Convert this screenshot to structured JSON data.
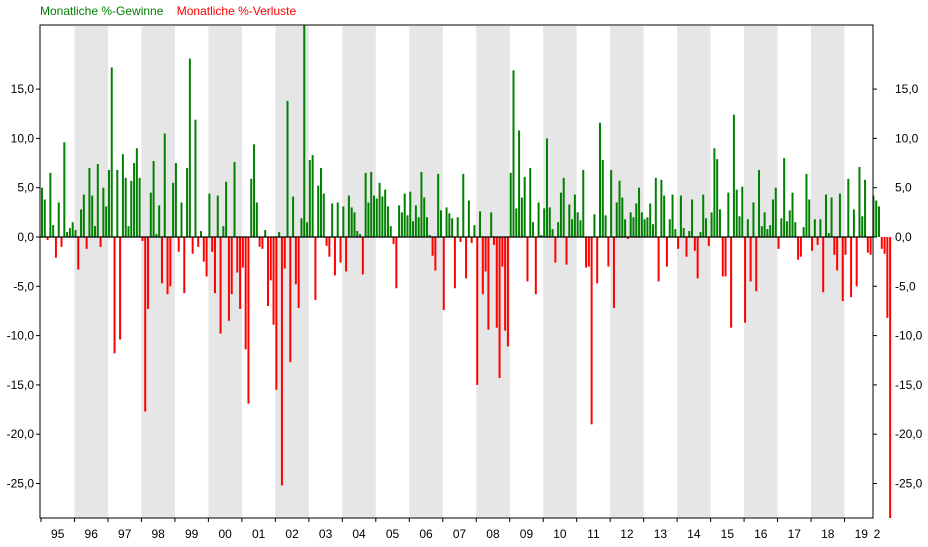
{
  "colors": {
    "gain": "#008000",
    "loss": "#ff0000",
    "band": "#e6e6e6",
    "axis": "#000000",
    "background": "#ffffff"
  },
  "chart_data": {
    "type": "bar",
    "title": "",
    "xlabel": "",
    "ylabel": "",
    "legend_position": "top-left",
    "grid": false,
    "alternating_year_bands": true,
    "series": [
      {
        "name": "Monatliche %-Gewinne",
        "color": "#008000",
        "sign": "positive"
      },
      {
        "name": "Monatliche %-Verluste",
        "color": "#ff0000",
        "sign": "negative"
      }
    ],
    "ylim": [
      -28.5,
      21.5
    ],
    "y_ticks": [
      15,
      10,
      5,
      0,
      -5,
      -10,
      -15,
      -20,
      -25
    ],
    "y_tick_labels": [
      "15,0",
      "10,0",
      "5,0",
      "0,0",
      "-5,0",
      "-10,0",
      "-15,0",
      "-20,0",
      "-25,0"
    ],
    "x_tick_labels": [
      "95",
      "96",
      "97",
      "98",
      "99",
      "00",
      "01",
      "02",
      "03",
      "04",
      "05",
      "06",
      "07",
      "08",
      "09",
      "10",
      "11",
      "12",
      "13",
      "14",
      "15",
      "16",
      "17",
      "18",
      "19",
      "2"
    ],
    "start_year_label": "95",
    "values": [
      5.0,
      3.8,
      -0.3,
      6.5,
      1.2,
      -2.1,
      3.5,
      -1.0,
      9.6,
      0.5,
      0.9,
      1.5,
      0.7,
      -3.3,
      2.8,
      4.3,
      -1.2,
      7.0,
      4.2,
      1.1,
      7.4,
      -1.0,
      5.0,
      3.1,
      6.8,
      17.2,
      -11.8,
      6.8,
      -10.4,
      8.4,
      6.0,
      1.1,
      5.7,
      7.5,
      9.0,
      6.0,
      -0.4,
      -17.7,
      -7.3,
      4.5,
      7.7,
      0.3,
      3.2,
      -4.7,
      10.5,
      -5.8,
      -5.0,
      5.5,
      7.5,
      -1.5,
      3.5,
      -5.7,
      7.0,
      18.1,
      -1.7,
      11.9,
      -1.0,
      0.6,
      -2.5,
      -4.0,
      4.4,
      -1.5,
      -5.7,
      4.2,
      -9.8,
      1.1,
      5.6,
      -8.5,
      -5.8,
      7.6,
      -3.6,
      -7.3,
      -3.1,
      -11.4,
      -16.9,
      5.9,
      9.4,
      3.5,
      -1.0,
      -1.2,
      0.7,
      -7.0,
      -4.4,
      -8.9,
      -15.5,
      0.5,
      -25.2,
      -3.2,
      13.8,
      -12.7,
      4.1,
      -4.8,
      -7.2,
      1.9,
      21.5,
      1.5,
      7.8,
      8.3,
      -6.4,
      5.2,
      7.0,
      4.4,
      -0.9,
      -2.0,
      3.4,
      -3.9,
      3.5,
      -2.6,
      3.1,
      -3.5,
      4.2,
      3.0,
      2.5,
      0.6,
      0.3,
      -3.8,
      6.5,
      3.5,
      6.6,
      4.2,
      3.9,
      5.5,
      4.1,
      4.8,
      3.1,
      1.1,
      -0.7,
      -5.2,
      3.2,
      2.5,
      4.4,
      2.2,
      4.6,
      1.6,
      3.2,
      2.0,
      6.6,
      4.0,
      2.0,
      0.2,
      -1.9,
      -3.4,
      6.4,
      2.7,
      -7.4,
      3.0,
      2.4,
      1.9,
      -5.2,
      2.0,
      -0.5,
      6.4,
      -4.2,
      3.7,
      -0.6,
      1.2,
      -15.0,
      2.6,
      -5.8,
      -3.5,
      -9.4,
      2.5,
      -0.8,
      -9.2,
      -14.3,
      -3.0,
      -9.5,
      -11.1,
      6.5,
      16.9,
      2.9,
      10.8,
      4.0,
      6.1,
      -4.5,
      7.0,
      1.5,
      -5.8,
      3.5,
      0.2,
      2.9,
      10.0,
      3.0,
      0.8,
      -2.6,
      1.5,
      4.5,
      6.0,
      -2.8,
      3.3,
      1.8,
      4.3,
      2.5,
      1.7,
      6.8,
      -3.1,
      -3.0,
      -19.0,
      2.3,
      -4.7,
      11.6,
      7.8,
      2.2,
      -3.0,
      6.8,
      -7.2,
      3.5,
      5.7,
      4.0,
      1.8,
      -0.2,
      2.5,
      2.0,
      3.4,
      5.0,
      2.5,
      1.8,
      2.0,
      3.4,
      1.3,
      6.0,
      -4.5,
      5.8,
      4.2,
      -3.0,
      1.8,
      4.3,
      0.8,
      -1.2,
      4.2,
      0.9,
      -2.0,
      0.6,
      3.8,
      -1.4,
      -4.2,
      0.5,
      4.3,
      1.9,
      -0.9,
      2.5,
      9.0,
      7.9,
      2.8,
      -4.0,
      -4.0,
      4.5,
      -9.2,
      12.4,
      4.8,
      2.1,
      5.1,
      -8.7,
      1.8,
      -4.5,
      3.5,
      -5.5,
      6.8,
      1.1,
      2.5,
      0.8,
      1.2,
      3.8,
      5.0,
      -1.2,
      1.9,
      8.0,
      1.6,
      2.7,
      4.5,
      1.5,
      -2.3,
      -2.0,
      1.0,
      6.4,
      3.8,
      -1.4,
      1.8,
      -0.8,
      1.8,
      -5.6,
      4.3,
      0.4,
      4.0,
      -1.8,
      -3.4,
      4.4,
      -6.5,
      -1.8,
      5.9,
      -6.1,
      2.8,
      -5.0,
      7.1,
      2.1,
      5.8,
      -1.6,
      -1.8,
      4.2,
      3.7,
      3.1,
      -1.2,
      -1.7,
      -8.2,
      -28.5
    ]
  }
}
